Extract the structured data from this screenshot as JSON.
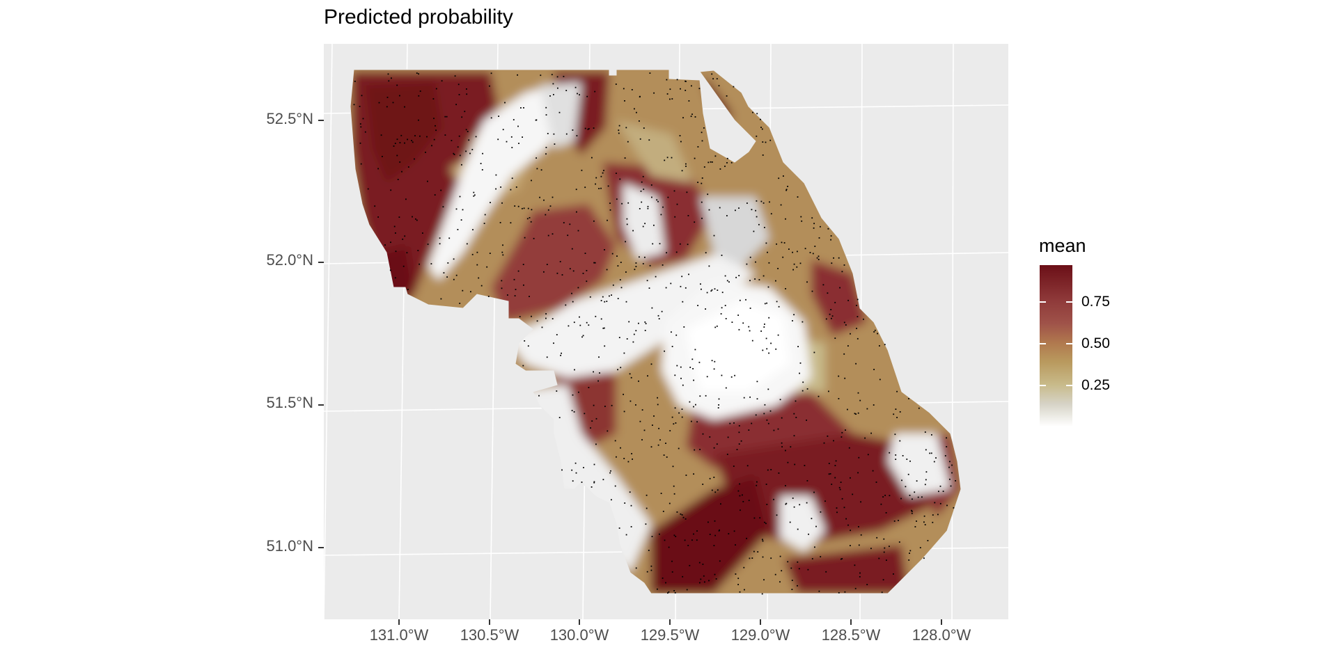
{
  "title": "Predicted probability",
  "y_axis": {
    "ticks": [
      "52.5°N",
      "52.0°N",
      "51.5°N",
      "51.0°N"
    ]
  },
  "x_axis": {
    "ticks": [
      "131.0°W",
      "130.5°W",
      "130.0°W",
      "129.5°W",
      "129.0°W",
      "128.5°W",
      "128.0°W"
    ]
  },
  "legend": {
    "title": "mean",
    "labels": [
      "0.75",
      "0.50",
      "0.25"
    ],
    "values": [
      0.75,
      0.5,
      0.25
    ],
    "range": [
      0.0,
      0.97
    ]
  },
  "colors": {
    "panel_background": "#ebebeb",
    "gridline": "#ffffff",
    "low": "#ffffff",
    "mid_low": "#c8ba8a",
    "mid": "#b08a50",
    "mid_high": "#9a4a45",
    "high": "#6b0f17",
    "points": "#000000"
  }
}
